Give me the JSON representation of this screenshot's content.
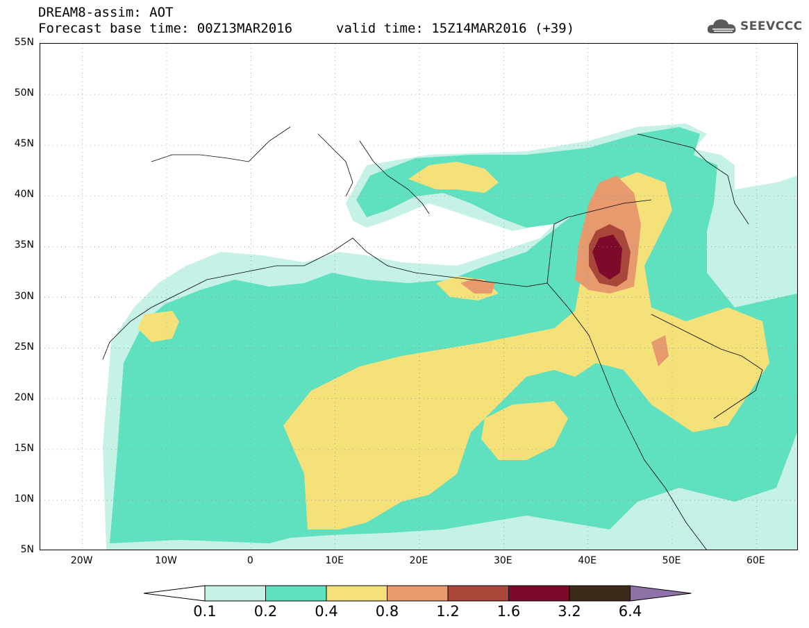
{
  "title": {
    "line1": "DREAM8-assim: AOT",
    "line2": "Forecast base time: 00Z13MAR2016",
    "line3": "valid time: 15Z14MAR2016 (+39)"
  },
  "logo": {
    "text": "SEEVCCC",
    "icon": "cloud-icon"
  },
  "map": {
    "lat_labels": [
      "55N",
      "50N",
      "45N",
      "40N",
      "35N",
      "30N",
      "25N",
      "20N",
      "15N",
      "10N",
      "5N"
    ],
    "lon_labels": [
      "20W",
      "10W",
      "0",
      "10E",
      "20E",
      "30E",
      "40E",
      "50E",
      "60E"
    ],
    "lat_range": [
      5,
      55
    ],
    "lon_range": [
      -25,
      65
    ],
    "grid": "dotted"
  },
  "legend": {
    "levels": [
      "0.1",
      "0.2",
      "0.4",
      "0.8",
      "1.2",
      "1.6",
      "3.2",
      "6.4"
    ],
    "colors": [
      "#ffffff",
      "#c6f1e6",
      "#5fe0bf",
      "#f4e17a",
      "#e69a6e",
      "#a9463a",
      "#7d0a2a",
      "#3b2a1a",
      "#8f72a8"
    ]
  }
}
